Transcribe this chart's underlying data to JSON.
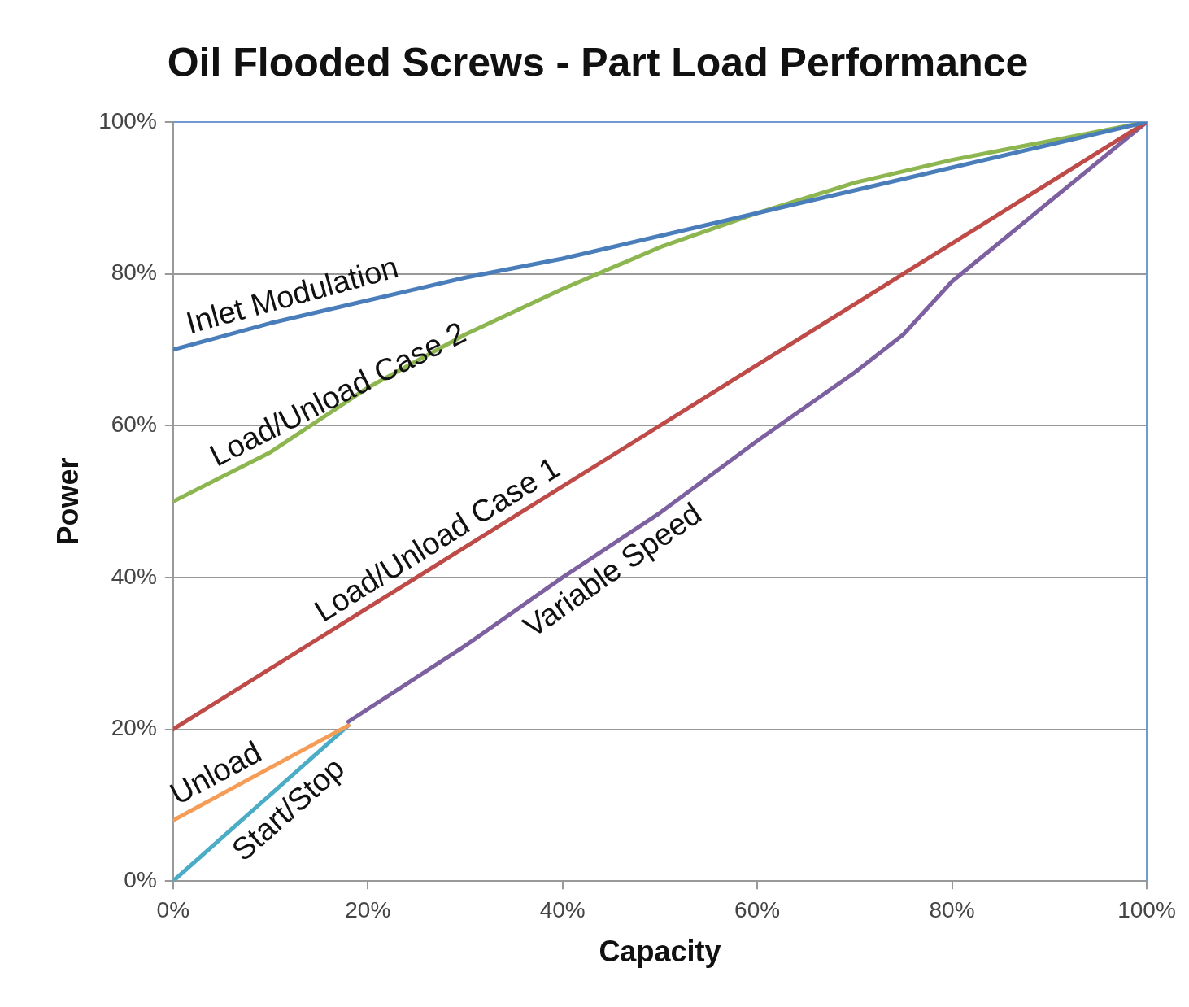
{
  "chart_data": {
    "type": "line",
    "title": "Oil Flooded Screws - Part Load Performance",
    "xlabel": "Capacity",
    "ylabel": "Power",
    "xlim": [
      0,
      100
    ],
    "ylim": [
      0,
      100
    ],
    "xticks": [
      {
        "value": 0,
        "label": "0%"
      },
      {
        "value": 20,
        "label": "20%"
      },
      {
        "value": 40,
        "label": "40%"
      },
      {
        "value": 60,
        "label": "60%"
      },
      {
        "value": 80,
        "label": "80%"
      },
      {
        "value": 100,
        "label": "100%"
      }
    ],
    "yticks": [
      {
        "value": 0,
        "label": "0%"
      },
      {
        "value": 20,
        "label": "20%"
      },
      {
        "value": 40,
        "label": "40%"
      },
      {
        "value": 60,
        "label": "60%"
      },
      {
        "value": 80,
        "label": "80%"
      },
      {
        "value": 100,
        "label": "100%"
      }
    ],
    "grid": "y",
    "legend": false,
    "marker": "none",
    "line_style": "solid",
    "series": [
      {
        "name": "Inlet Modulation",
        "color": "#4a7ebb",
        "x": [
          0,
          10,
          20,
          30,
          40,
          50,
          60,
          70,
          80,
          90,
          100
        ],
        "values": [
          70,
          73.5,
          76.5,
          79.5,
          82,
          85,
          88,
          91,
          94,
          97,
          100
        ]
      },
      {
        "name": "Load/Unload Case 2",
        "color": "#8db650",
        "x": [
          0,
          10,
          20,
          30,
          40,
          50,
          60,
          70,
          80,
          90,
          100
        ],
        "values": [
          50,
          56.5,
          65,
          72,
          78,
          83.5,
          88,
          92,
          95,
          97.5,
          100
        ]
      },
      {
        "name": "Load/Unload Case 1",
        "color": "#be4b48",
        "x": [
          0,
          100
        ],
        "values": [
          20,
          100
        ]
      },
      {
        "name": "Variable Speed",
        "color": "#7d60a0",
        "x": [
          18,
          30,
          40,
          50,
          60,
          70,
          75,
          80,
          90,
          100
        ],
        "values": [
          21,
          31,
          40,
          48.5,
          58,
          67,
          72,
          79,
          89.5,
          100
        ]
      },
      {
        "name": "Unload",
        "color": "#f59d56",
        "x": [
          0,
          18
        ],
        "values": [
          8,
          20.5
        ]
      },
      {
        "name": "Start/Stop",
        "color": "#4bacc6",
        "x": [
          0,
          18
        ],
        "values": [
          0,
          20.5
        ]
      }
    ]
  }
}
